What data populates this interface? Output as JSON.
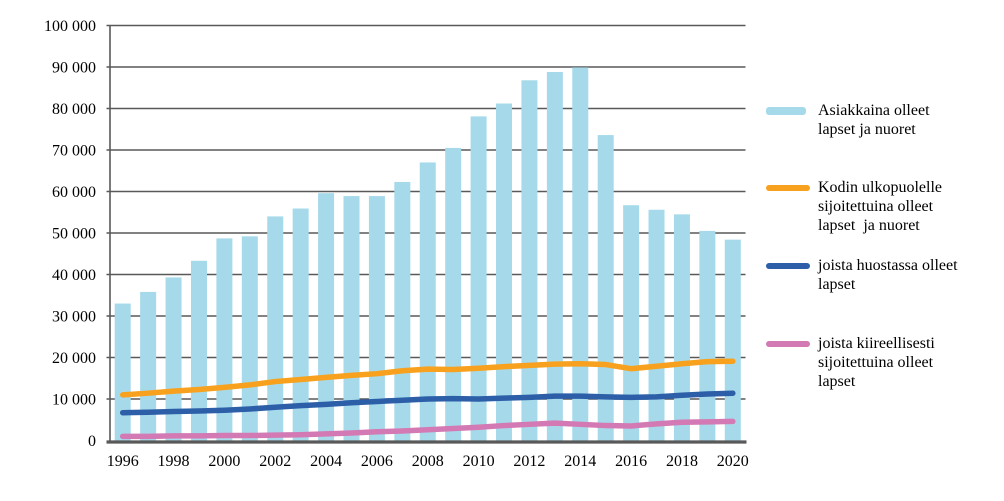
{
  "chart_data": {
    "type": "combo",
    "title": "",
    "categories": [
      1996,
      1997,
      1998,
      1999,
      2000,
      2001,
      2002,
      2003,
      2004,
      2005,
      2006,
      2007,
      2008,
      2009,
      2010,
      2011,
      2012,
      2013,
      2014,
      2015,
      2016,
      2017,
      2018,
      2019,
      2020
    ],
    "x_tick_labels": [
      "1996",
      "1998",
      "2000",
      "2002",
      "2004",
      "2006",
      "2008",
      "2010",
      "2012",
      "2014",
      "2016",
      "2018",
      "2020"
    ],
    "y_axis": {
      "min": 0,
      "max": 100000,
      "step": 10000,
      "tick_labels": [
        "0",
        "10 000",
        "20 000",
        "30 000",
        "40 000",
        "50 000",
        "60 000",
        "70 000",
        "80 000",
        "90 000",
        "100 000"
      ]
    },
    "grid": true,
    "legend_position": "right",
    "series": [
      {
        "name": "Asiakkaina olleet lapset ja nuoret",
        "type": "bar",
        "color": "#A6DAEA",
        "values": [
          33000,
          35800,
          39300,
          43300,
          48700,
          49200,
          54000,
          55900,
          59600,
          58900,
          58900,
          62300,
          67000,
          70500,
          78100,
          81200,
          86800,
          88800,
          89900,
          73600,
          56700,
          55600,
          54500,
          50500,
          48400
        ]
      },
      {
        "name": "Kodin ulkopuolelle sijoitettuina olleet lapset ja nuoret",
        "type": "line",
        "color": "#F7A11E",
        "values": [
          11000,
          11400,
          11900,
          12300,
          12800,
          13400,
          14200,
          14700,
          15200,
          15700,
          16100,
          16800,
          17200,
          17100,
          17400,
          17800,
          18100,
          18400,
          18500,
          18300,
          17300,
          17900,
          18500,
          19000,
          19100
        ]
      },
      {
        "name": "joista huostassa olleet lapset",
        "type": "line",
        "color": "#2D5FA8",
        "values": [
          6700,
          6800,
          7000,
          7100,
          7300,
          7600,
          8000,
          8400,
          8700,
          9100,
          9400,
          9700,
          10000,
          10100,
          10000,
          10200,
          10400,
          10700,
          10700,
          10500,
          10400,
          10500,
          10900,
          11200,
          11400
        ]
      },
      {
        "name": "joista kiireellisesti sijoitettuina olleet lapset",
        "type": "line",
        "color": "#D37AB4",
        "values": [
          1000,
          1000,
          1100,
          1100,
          1200,
          1200,
          1300,
          1400,
          1600,
          1800,
          2100,
          2300,
          2600,
          2900,
          3200,
          3600,
          3900,
          4200,
          3900,
          3600,
          3500,
          4000,
          4400,
          4500,
          4600
        ]
      }
    ],
    "legend": [
      {
        "label": "Asiakkaina olleet\nlapset ja nuoret",
        "swatch": "bar",
        "color": "#A6DAEA"
      },
      {
        "label": "Kodin ulkopuolelle\nsijoitettuina olleet\nlapset  ja nuoret",
        "swatch": "line",
        "color": "#F7A11E"
      },
      {
        "label": "joista huostassa olleet\nlapset",
        "swatch": "line",
        "color": "#2D5FA8"
      },
      {
        "label": "joista kiireellisesti\nsijoitettuina olleet\nlapset",
        "swatch": "line",
        "color": "#D37AB4"
      }
    ],
    "colors": {
      "gridline": "#595959",
      "axis": "#595959",
      "text": "#000000"
    }
  }
}
